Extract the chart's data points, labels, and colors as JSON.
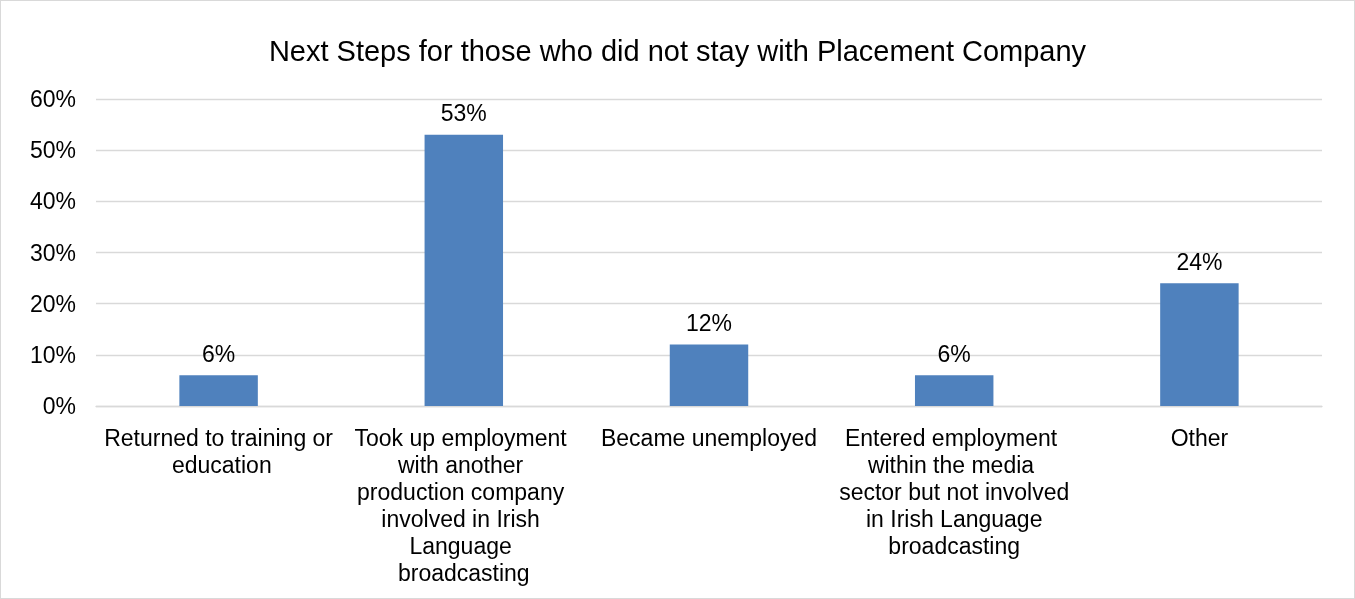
{
  "chart_data": {
    "type": "bar",
    "title": "Next Steps for those who did not stay with Placement Company",
    "categories": [
      "Returned to training or education",
      "Took up employment with another production company involved in Irish Language broadcasting",
      "Became unemployed",
      "Entered employment within the media sector but not involved in Irish Language broadcasting",
      "Other"
    ],
    "values": [
      6,
      53,
      12,
      6,
      24
    ],
    "color": "#4f81bd",
    "value_labels": [
      "6%",
      "53%",
      "12%",
      "6%",
      "24%"
    ],
    "ylim": [
      0,
      60
    ],
    "yticks": [
      {
        "value": 0,
        "label": "0%"
      },
      {
        "value": 10,
        "label": "10%"
      },
      {
        "value": 20,
        "label": "20%"
      },
      {
        "value": 30,
        "label": "30%"
      },
      {
        "value": 40,
        "label": "40%"
      },
      {
        "value": 50,
        "label": "50%"
      },
      {
        "value": 60,
        "label": "60%"
      }
    ],
    "grid": "y"
  }
}
